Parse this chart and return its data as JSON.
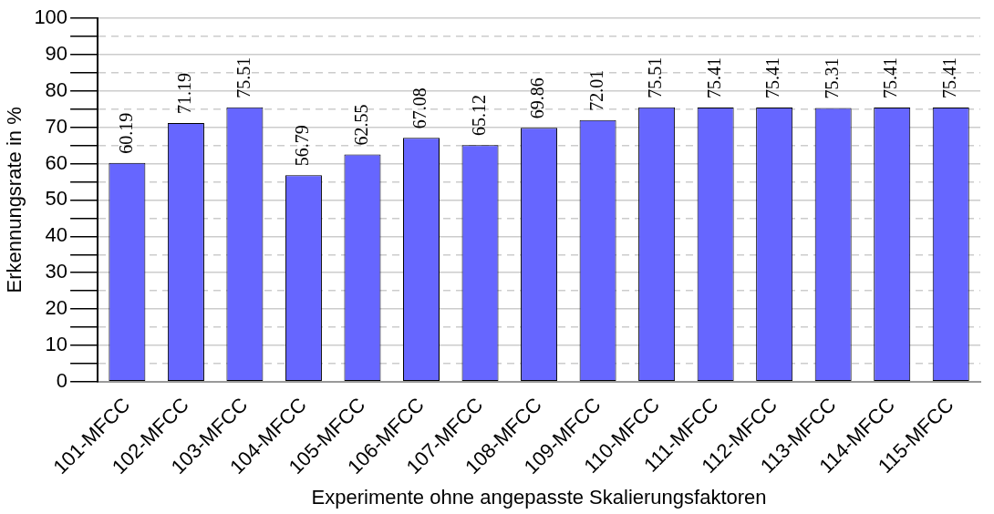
{
  "chart_data": {
    "type": "bar",
    "xlabel": "Experimente ohne angepasste Skalierungsfaktoren",
    "ylabel": "Erkennungsrate in %",
    "categories": [
      "101-MFCC",
      "102-MFCC",
      "103-MFCC",
      "104-MFCC",
      "105-MFCC",
      "106-MFCC",
      "107-MFCC",
      "108-MFCC",
      "109-MFCC",
      "110-MFCC",
      "111-MFCC",
      "112-MFCC",
      "113-MFCC",
      "114-MFCC",
      "115-MFCC"
    ],
    "values": [
      60.19,
      71.19,
      75.51,
      56.79,
      62.55,
      67.08,
      65.12,
      69.86,
      72.01,
      75.51,
      75.41,
      75.41,
      75.31,
      75.41,
      75.41
    ],
    "color": "#6666ff",
    "ylim": [
      0,
      100
    ],
    "yticks": [
      0,
      {
        "value": 5,
        "label": null
      },
      10,
      {
        "value": 15,
        "label": null
      },
      20,
      {
        "value": 25,
        "label": null
      },
      30,
      {
        "value": 35,
        "label": null
      },
      40,
      {
        "value": 45,
        "label": null
      },
      50,
      {
        "value": 55,
        "label": null
      },
      60,
      {
        "value": 65,
        "label": null
      },
      70,
      {
        "value": 75,
        "label": null
      },
      80,
      {
        "value": 85,
        "label": null
      },
      90,
      {
        "value": 95,
        "label": null
      },
      100
    ],
    "grid": "y",
    "legend": false,
    "data_labels": true
  }
}
